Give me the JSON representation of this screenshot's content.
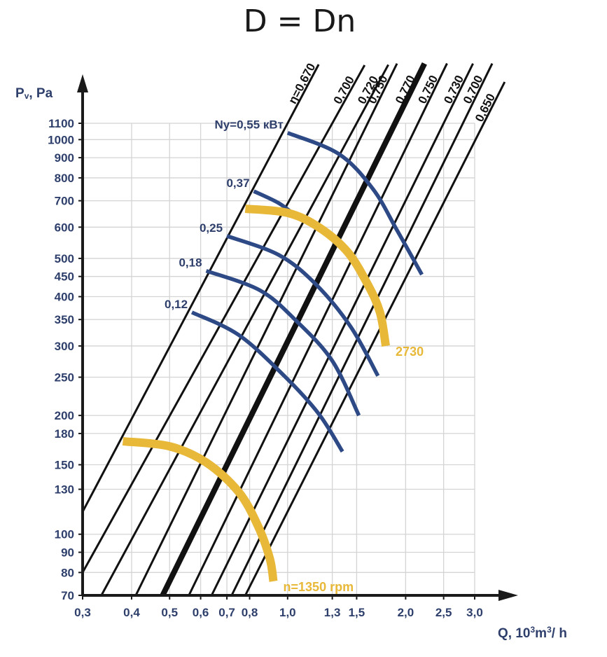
{
  "chart_data": {
    "type": "line",
    "title": "D = Dn",
    "ylabel_main": "P",
    "ylabel_sub": "v",
    "ylabel_unit": ", Pa",
    "xlabel_main": "Q, 10",
    "xlabel_sup": "3",
    "xlabel_unit": "m",
    "xlabel_sup2": "3",
    "xlabel_end": "/ h",
    "xscale": "log",
    "yscale": "log",
    "xlim": [
      0.3,
      3.0
    ],
    "ylim": [
      70,
      1100
    ],
    "x_ticks": [
      {
        "value": 0.3,
        "label": "0,3"
      },
      {
        "value": 0.4,
        "label": "0,4"
      },
      {
        "value": 0.5,
        "label": "0,5"
      },
      {
        "value": 0.6,
        "label": "0,6"
      },
      {
        "value": 0.7,
        "label": "0,7"
      },
      {
        "value": 0.8,
        "label": "0,8"
      },
      {
        "value": 1.0,
        "label": "1,0"
      },
      {
        "value": 1.3,
        "label": "1,3"
      },
      {
        "value": 1.5,
        "label": "1,5"
      },
      {
        "value": 2.0,
        "label": "2,0"
      },
      {
        "value": 2.5,
        "label": "2,5"
      },
      {
        "value": 3.0,
        "label": "3,0"
      }
    ],
    "y_ticks": [
      {
        "value": 70,
        "label": "70"
      },
      {
        "value": 80,
        "label": "80"
      },
      {
        "value": 90,
        "label": "90"
      },
      {
        "value": 100,
        "label": "100"
      },
      {
        "value": 130,
        "label": "130"
      },
      {
        "value": 150,
        "label": "150"
      },
      {
        "value": 180,
        "label": "180"
      },
      {
        "value": 200,
        "label": "200"
      },
      {
        "value": 250,
        "label": "250"
      },
      {
        "value": 300,
        "label": "300"
      },
      {
        "value": 350,
        "label": "350"
      },
      {
        "value": 400,
        "label": "400"
      },
      {
        "value": 450,
        "label": "450"
      },
      {
        "value": 500,
        "label": "500"
      },
      {
        "value": 600,
        "label": "600"
      },
      {
        "value": 700,
        "label": "700"
      },
      {
        "value": 800,
        "label": "800"
      },
      {
        "value": 900,
        "label": "900"
      },
      {
        "value": 1000,
        "label": "1000"
      },
      {
        "value": 1100,
        "label": "1100"
      }
    ],
    "efficiency_lines": [
      {
        "label": "η=0,670",
        "start": [
          0.3,
          114
        ],
        "end": [
          1.0,
          1100
        ],
        "bold": false
      },
      {
        "label": "0,700",
        "start": [
          0.3,
          80
        ],
        "end": [
          1.3,
          1100
        ],
        "bold": false
      },
      {
        "label": "0,720",
        "start": [
          0.335,
          70
        ],
        "end": [
          1.5,
          1100
        ],
        "bold": false
      },
      {
        "label": "0,750",
        "start": [
          0.41,
          70
        ],
        "end": [
          1.6,
          1100
        ],
        "bold": false
      },
      {
        "label": "0,770",
        "start": [
          0.48,
          70
        ],
        "end": [
          1.88,
          1100
        ],
        "bold": true
      },
      {
        "label": "0,750",
        "start": [
          0.56,
          70
        ],
        "end": [
          2.15,
          1100
        ],
        "bold": false
      },
      {
        "label": "0,730",
        "start": [
          0.64,
          70
        ],
        "end": [
          2.5,
          1100
        ],
        "bold": false
      },
      {
        "label": "0,700",
        "start": [
          0.72,
          70
        ],
        "end": [
          2.8,
          1100
        ],
        "bold": false
      },
      {
        "label": "0,650",
        "start": [
          0.78,
          70
        ],
        "end": [
          3.0,
          990
        ],
        "bold": false
      }
    ],
    "power_curves": [
      {
        "label": "0,12",
        "points": [
          [
            0.57,
            365
          ],
          [
            0.75,
            320
          ],
          [
            0.98,
            252
          ],
          [
            1.2,
            202
          ],
          [
            1.38,
            162
          ]
        ]
      },
      {
        "label": "0,18",
        "points": [
          [
            0.62,
            465
          ],
          [
            0.85,
            415
          ],
          [
            1.05,
            348
          ],
          [
            1.3,
            275
          ],
          [
            1.52,
            200
          ]
        ]
      },
      {
        "label": "0,25",
        "points": [
          [
            0.7,
            570
          ],
          [
            0.95,
            510
          ],
          [
            1.18,
            430
          ],
          [
            1.45,
            335
          ],
          [
            1.7,
            252
          ]
        ]
      },
      {
        "label": "0,37",
        "points": [
          [
            0.82,
            740
          ],
          [
            0.95,
            690
          ],
          [
            1.05,
            640
          ]
        ]
      },
      {
        "label": "Ny=0,55 кВт",
        "points": [
          [
            1.0,
            1040
          ],
          [
            1.35,
            920
          ],
          [
            1.65,
            750
          ],
          [
            1.9,
            590
          ],
          [
            2.2,
            455
          ]
        ]
      }
    ],
    "speed_curves": [
      {
        "label": "n=1350  rpm",
        "points": [
          [
            0.38,
            172
          ],
          [
            0.5,
            167
          ],
          [
            0.62,
            152
          ],
          [
            0.75,
            128
          ],
          [
            0.84,
            105
          ],
          [
            0.9,
            87
          ],
          [
            0.92,
            76
          ]
        ]
      },
      {
        "label": "2730",
        "points": [
          [
            0.78,
            668
          ],
          [
            1.0,
            652
          ],
          [
            1.2,
            600
          ],
          [
            1.42,
            520
          ],
          [
            1.6,
            430
          ],
          [
            1.72,
            365
          ],
          [
            1.78,
            300
          ]
        ]
      }
    ]
  }
}
